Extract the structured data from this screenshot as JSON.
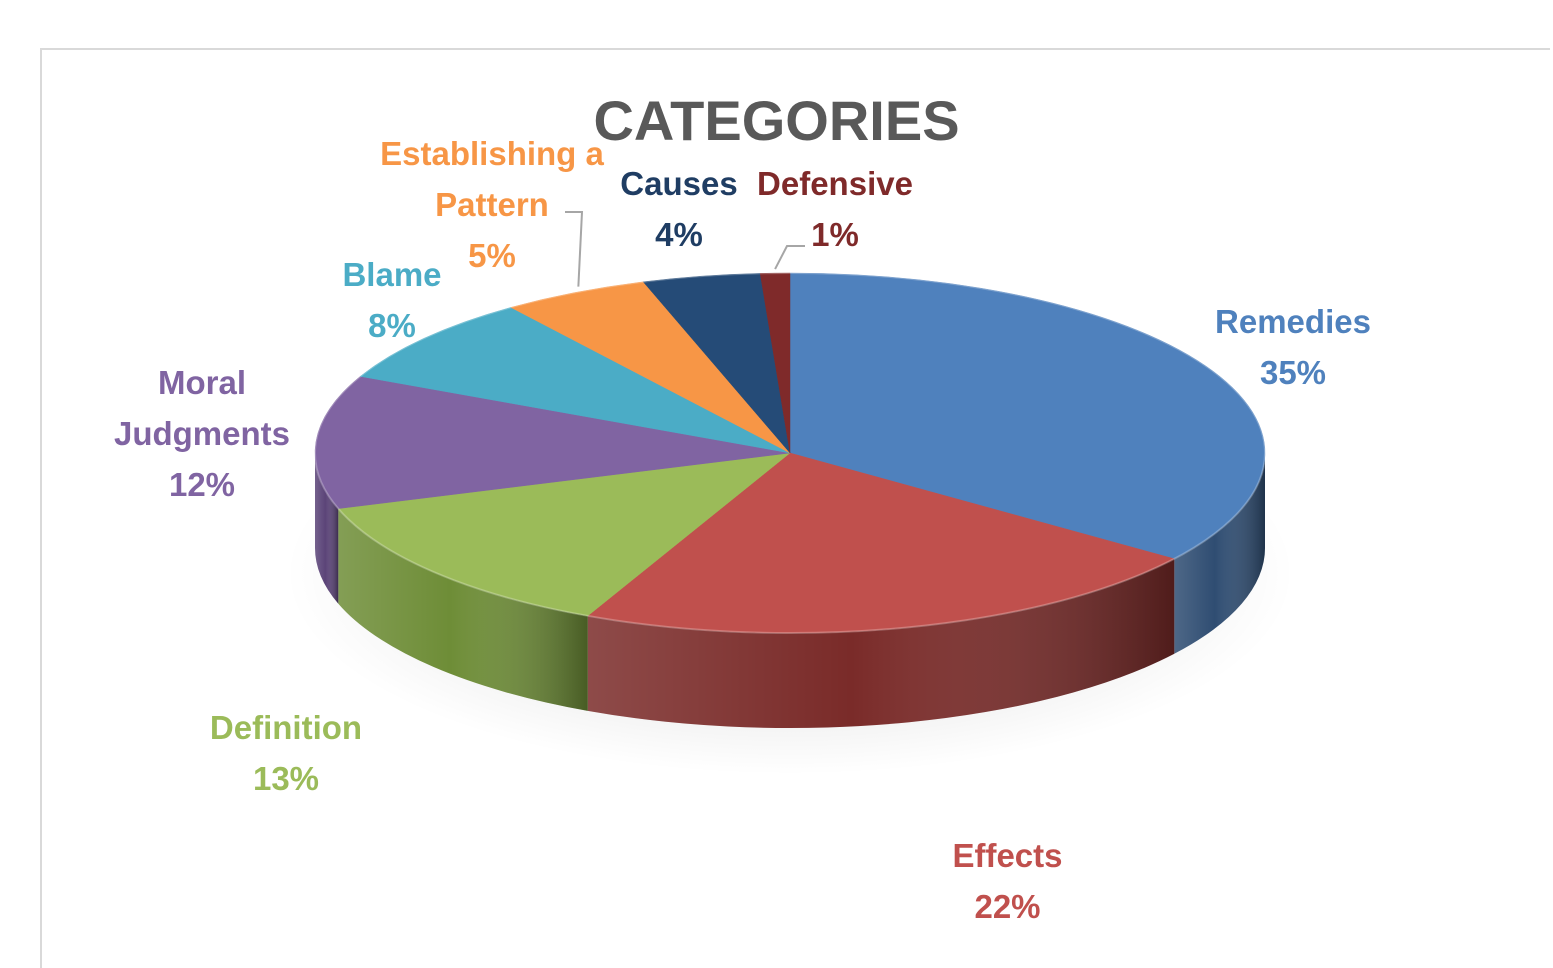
{
  "chart_data": {
    "type": "pie",
    "title": "CATEGORIES",
    "slices": [
      {
        "label": "Remedies",
        "value": 35,
        "pct_label": "35%",
        "color": "#4f81bd",
        "side": "#2f4d72"
      },
      {
        "label": "Effects",
        "value": 22,
        "pct_label": "22%",
        "color": "#c0504d",
        "side": "#7a2b29"
      },
      {
        "label": "Definition",
        "value": 13,
        "pct_label": "13%",
        "color": "#9bbb59",
        "side": "#6e8d37"
      },
      {
        "label": "Moral Judgments",
        "value": 12,
        "pct_label": "12%",
        "color": "#8064a2",
        "side": "#5b4478"
      },
      {
        "label": "Blame",
        "value": 8,
        "pct_label": "8%",
        "color": "#4bacc6",
        "side": "#2d7c91"
      },
      {
        "label": "Establishing a Pattern",
        "value": 5,
        "pct_label": "5%",
        "color": "#f79646",
        "side": "#b8692a"
      },
      {
        "label": "Causes",
        "value": 4,
        "pct_label": "4%",
        "color": "#254b77",
        "side": "#163050"
      },
      {
        "label": "Defensive",
        "value": 1,
        "pct_label": "1%",
        "color": "#7f2a2a",
        "side": "#551a1a"
      }
    ],
    "label_colors": {
      "Remedies": "#4f81bd",
      "Effects": "#c0504d",
      "Definition": "#9bbb59",
      "Moral Judgments": "#8064a2",
      "Blame": "#4bacc6",
      "Establishing a Pattern": "#f79646",
      "Causes": "#1f3d63",
      "Defensive": "#7f2a2a"
    }
  }
}
